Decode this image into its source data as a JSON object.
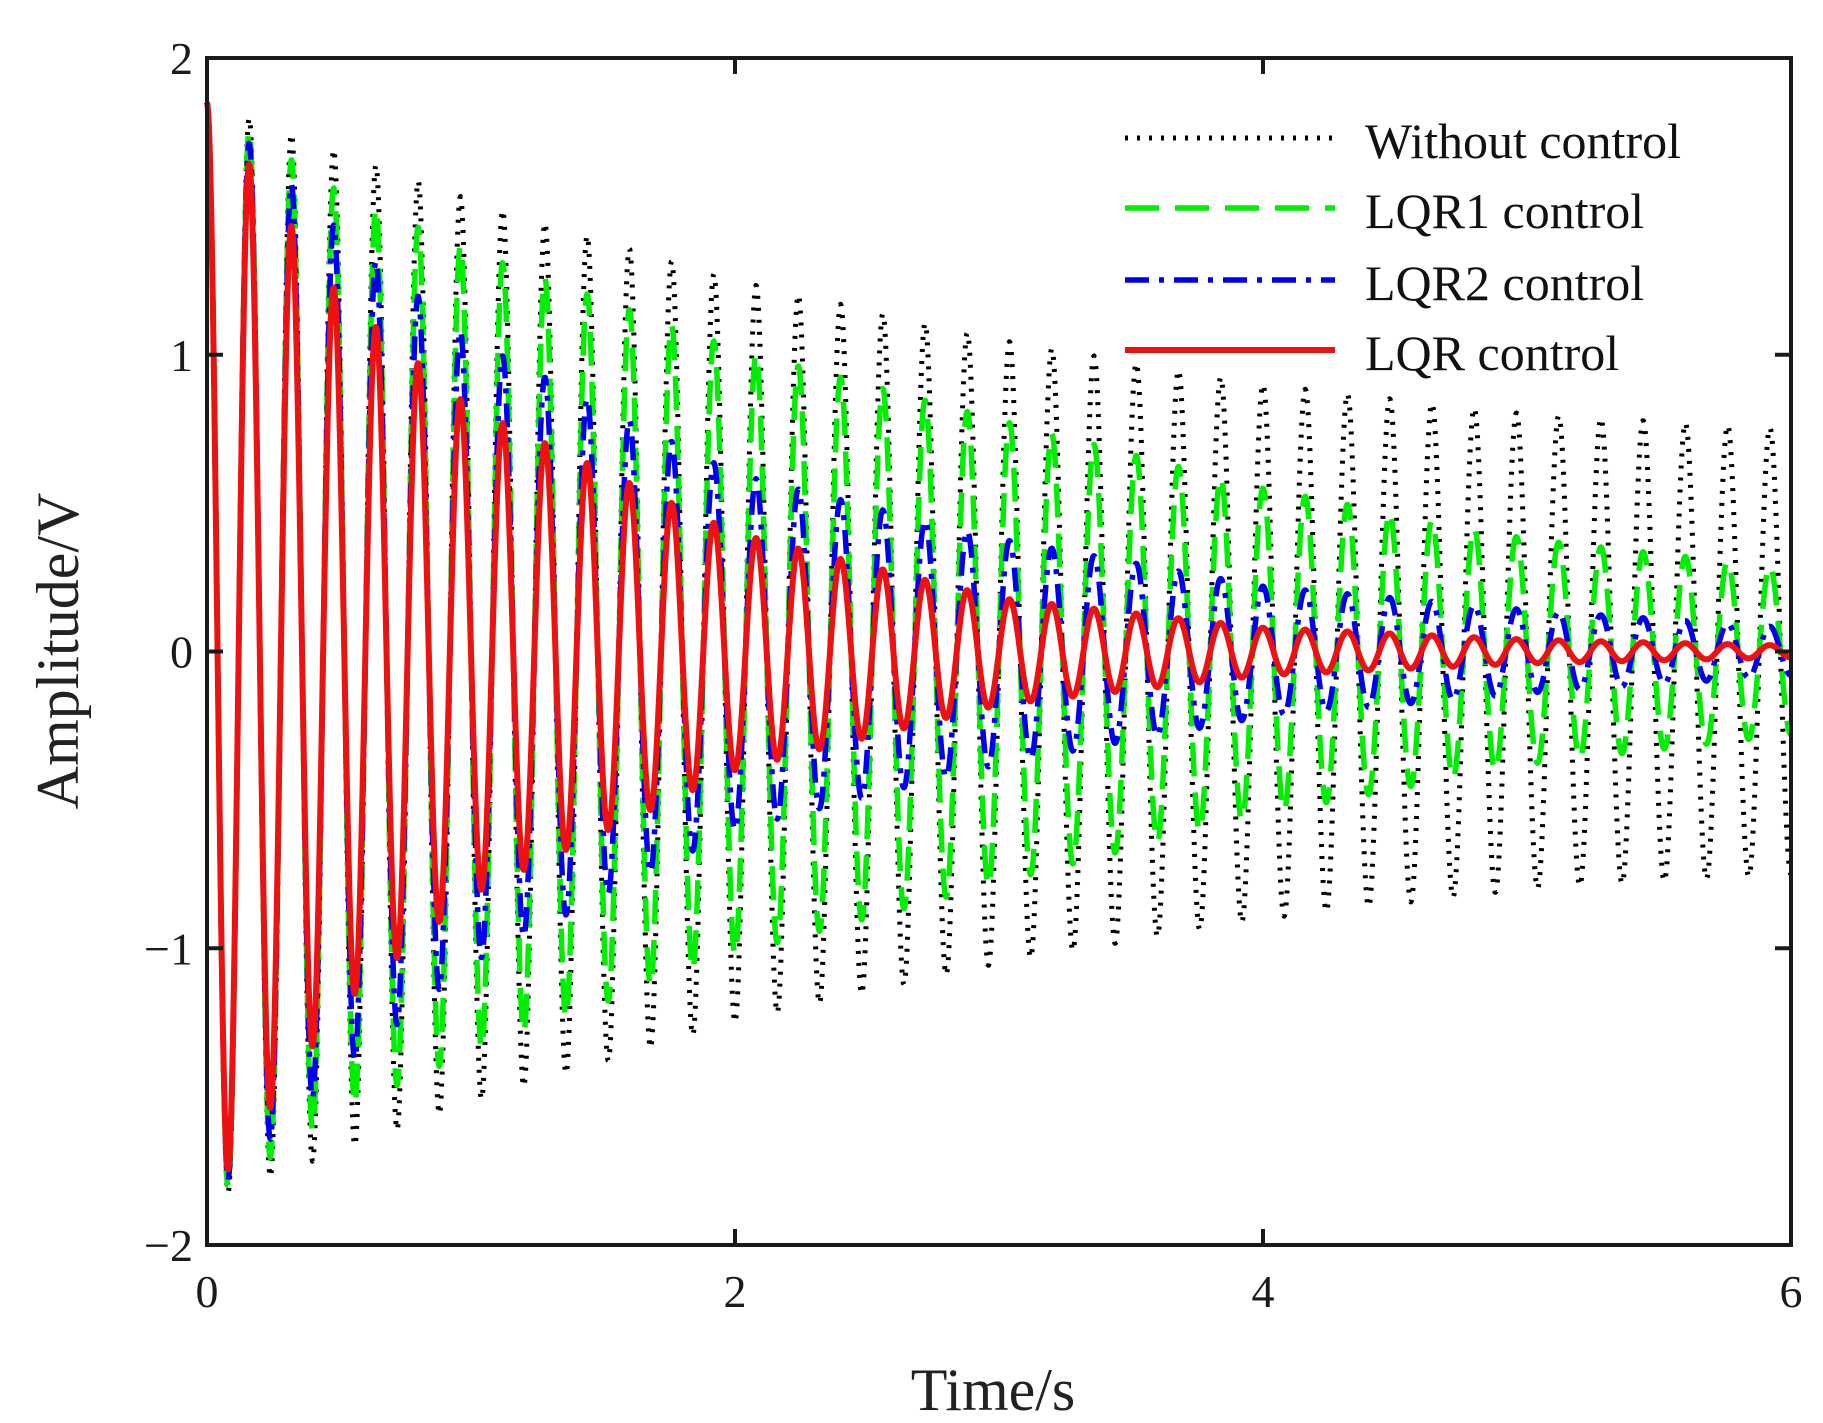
{
  "chart_data": {
    "type": "line",
    "title": "",
    "xlabel": "Time/s",
    "ylabel": "Amplitude/V",
    "xlim": [
      0,
      6
    ],
    "ylim": [
      -2,
      2
    ],
    "xticks": [
      0,
      2,
      4,
      6
    ],
    "yticks": [
      -2,
      -1,
      0,
      1,
      2
    ],
    "xtick_labels": [
      "0",
      "2",
      "4",
      "6"
    ],
    "ytick_labels": [
      "−2",
      "−1",
      "0",
      "1",
      "2"
    ],
    "grid": false,
    "legend_position": "top-right",
    "series": [
      {
        "name": "Without control",
        "color": "#000000",
        "style": "dotted",
        "frequency_hz": 6.25,
        "peaks": [
          [
            0.0,
            1.85
          ],
          [
            1.0,
            1.52
          ],
          [
            2.0,
            1.25
          ],
          [
            3.0,
            1.05
          ],
          [
            4.0,
            0.9
          ],
          [
            5.0,
            0.8
          ],
          [
            6.0,
            0.75
          ]
        ]
      },
      {
        "name": "LQR1 control",
        "color": "#00ee00",
        "style": "dashed",
        "frequency_hz": 6.25,
        "peaks": [
          [
            0.0,
            1.85
          ],
          [
            0.5,
            1.55
          ],
          [
            1.0,
            1.35
          ],
          [
            2.0,
            1.02
          ],
          [
            3.0,
            0.78
          ],
          [
            4.0,
            0.55
          ],
          [
            5.0,
            0.38
          ],
          [
            6.0,
            0.28
          ]
        ]
      },
      {
        "name": "LQR2 control",
        "color": "#0000ee",
        "style": "dashdot",
        "frequency_hz": 6.25,
        "peaks": [
          [
            0.0,
            1.85
          ],
          [
            0.5,
            1.42
          ],
          [
            1.0,
            1.05
          ],
          [
            2.0,
            0.6
          ],
          [
            3.0,
            0.38
          ],
          [
            4.0,
            0.22
          ],
          [
            5.0,
            0.14
          ],
          [
            6.0,
            0.08
          ]
        ]
      },
      {
        "name": "LQR control",
        "color": "#ee1111",
        "style": "solid",
        "frequency_hz": 6.25,
        "peaks": [
          [
            0.0,
            1.85
          ],
          [
            0.5,
            1.2
          ],
          [
            1.0,
            0.82
          ],
          [
            2.0,
            0.4
          ],
          [
            3.0,
            0.18
          ],
          [
            4.0,
            0.08
          ],
          [
            5.0,
            0.04
          ],
          [
            6.0,
            0.02
          ]
        ]
      }
    ]
  }
}
